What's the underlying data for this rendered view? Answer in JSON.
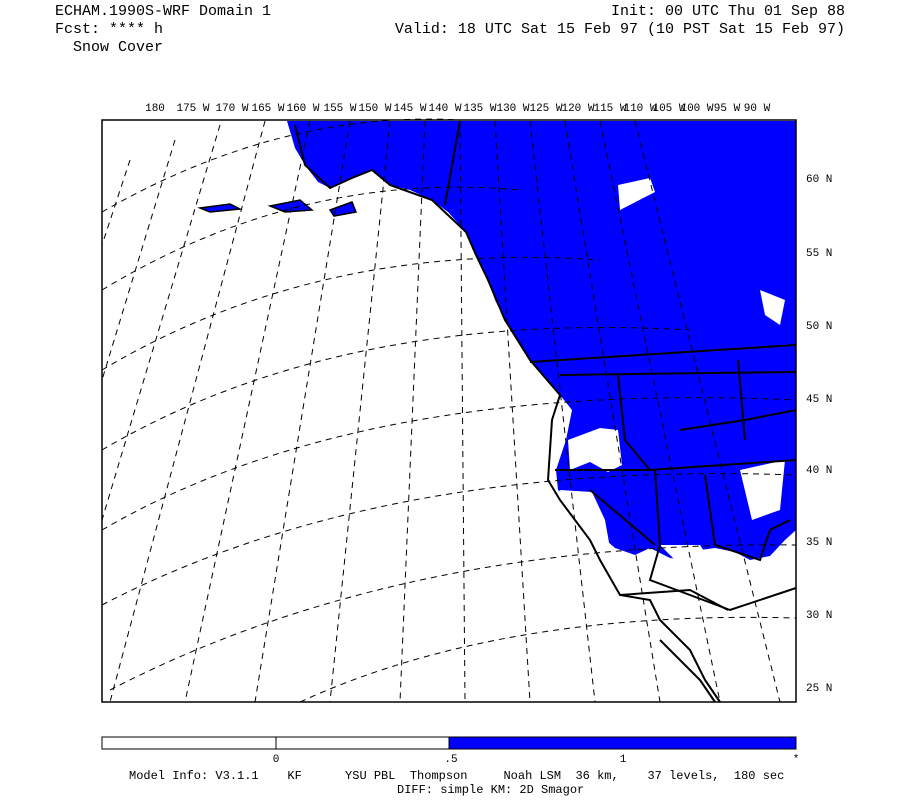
{
  "header": {
    "title": "ECHAM.1990S-WRF Domain 1",
    "forecast": "Fcst: **** h",
    "field": "Snow Cover",
    "init": "Init: 00 UTC Thu 01 Sep 88",
    "valid": "Valid: 18 UTC Sat 15 Feb 97 (10 PST Sat 15 Feb 97)"
  },
  "map": {
    "lon_labels": [
      "180",
      "175 W",
      "170 W",
      "165 W",
      "160 W",
      "155 W",
      "150 W",
      "145 W",
      "140 W",
      "135 W",
      "130 W",
      "125 W",
      "120 W",
      "115 W",
      "110 W",
      "105 W",
      "100 W",
      "95 W",
      "90 W"
    ],
    "lat_labels": [
      "60 N",
      "55 N",
      "50 N",
      "45 N",
      "40 N",
      "35 N",
      "30 N",
      "25 N"
    ]
  },
  "colorbar": {
    "labels": [
      "0",
      ".5",
      "1",
      "*"
    ]
  },
  "footer": {
    "model_info": "Model Info: V3.1.1    KF      YSU PBL  Thompson     Noah LSM  36 km,    37 levels,  180 sec",
    "diff": "DIFF: simple KM: 2D Smagor"
  }
}
